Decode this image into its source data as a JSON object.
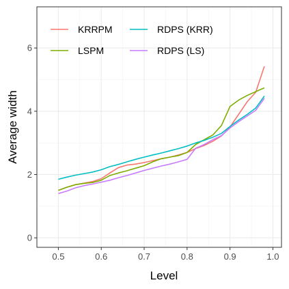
{
  "chart_data": {
    "type": "line",
    "xlabel": "Level",
    "ylabel": "Average width",
    "xlim": [
      0.45,
      1.02
    ],
    "ylim": [
      -0.3,
      7.3
    ],
    "x_ticks": [
      0.5,
      0.6,
      0.7,
      0.8,
      0.9,
      1.0
    ],
    "x_tick_labels": [
      "0.5",
      "0.6",
      "0.7",
      "0.8",
      "0.9",
      "1.0"
    ],
    "y_ticks": [
      0,
      2,
      4,
      6
    ],
    "y_tick_labels": [
      "0",
      "2",
      "4",
      "6"
    ],
    "grid": true,
    "legend_position": "top-left",
    "x": [
      0.5,
      0.52,
      0.54,
      0.56,
      0.58,
      0.6,
      0.62,
      0.64,
      0.66,
      0.68,
      0.7,
      0.72,
      0.74,
      0.76,
      0.78,
      0.8,
      0.82,
      0.84,
      0.86,
      0.88,
      0.9,
      0.92,
      0.94,
      0.96,
      0.98
    ],
    "series": [
      {
        "name": "KRRPM",
        "color": "#F8766D",
        "values": [
          1.5,
          1.6,
          1.68,
          1.73,
          1.78,
          1.87,
          2.05,
          2.22,
          2.3,
          2.33,
          2.38,
          2.44,
          2.5,
          2.55,
          2.62,
          2.7,
          2.82,
          2.92,
          3.05,
          3.22,
          3.5,
          3.9,
          4.3,
          4.6,
          5.42
        ]
      },
      {
        "name": "LSPM",
        "color": "#7CAE00",
        "values": [
          1.5,
          1.6,
          1.68,
          1.72,
          1.75,
          1.82,
          1.97,
          2.05,
          2.12,
          2.2,
          2.28,
          2.4,
          2.5,
          2.55,
          2.6,
          2.7,
          2.95,
          3.1,
          3.25,
          3.55,
          4.15,
          4.35,
          4.5,
          4.62,
          4.74
        ]
      },
      {
        "name": "RDPS (KRR)",
        "color": "#00BFC4",
        "values": [
          1.85,
          1.92,
          1.98,
          2.03,
          2.08,
          2.15,
          2.25,
          2.32,
          2.4,
          2.48,
          2.55,
          2.62,
          2.68,
          2.75,
          2.82,
          2.9,
          3.0,
          3.08,
          3.18,
          3.3,
          3.52,
          3.72,
          3.9,
          4.1,
          4.48
        ]
      },
      {
        "name": "RDPS (LS)",
        "color": "#C77CFF",
        "values": [
          1.4,
          1.48,
          1.58,
          1.65,
          1.7,
          1.76,
          1.82,
          1.9,
          1.97,
          2.05,
          2.13,
          2.2,
          2.27,
          2.33,
          2.4,
          2.48,
          2.83,
          2.95,
          3.1,
          3.23,
          3.47,
          3.67,
          3.85,
          4.03,
          4.41
        ]
      }
    ]
  }
}
